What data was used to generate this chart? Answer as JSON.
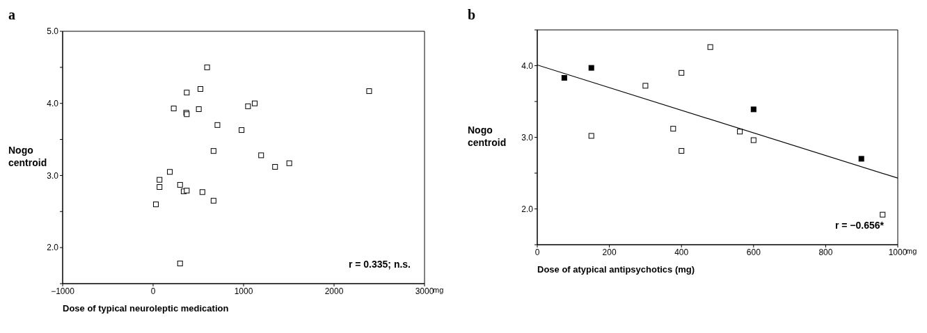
{
  "chart_data": [
    {
      "type": "scatter",
      "title": "a",
      "xlabel": "Dose of typical neuroleptic medication",
      "ylabel": "Nogo centroid",
      "annotations": [
        "r = 0.335; n.s.",
        "mg"
      ],
      "marker": "square",
      "grid": false,
      "legend": false,
      "xlim": [
        -1000,
        3000
      ],
      "xticks": [
        {
          "value": -1000,
          "label": "−1000"
        },
        0,
        1000,
        2000,
        3000
      ],
      "ylim": [
        1.5,
        5.0
      ],
      "yticks": [
        {
          "value": 1.5,
          "label": null
        },
        {
          "value": 2,
          "label": "2.0"
        },
        {
          "value": 2.5,
          "label": null
        },
        {
          "value": 3,
          "label": "3.0"
        },
        {
          "value": 3.5,
          "label": null
        },
        {
          "value": 4,
          "label": "4.0"
        },
        {
          "value": 4.5,
          "label": null
        },
        {
          "value": 5,
          "label": "5.0"
        }
      ],
      "series": [
        {
          "color": "#ffffff",
          "x": [
            597,
            523,
            372,
            2388,
            228,
            366,
            372,
            505,
            1049,
            1123,
            711,
            978,
            668,
            1194,
            1348,
            1505,
            185,
            71,
            71,
            298,
            338,
            372,
            545,
            668,
            31,
            298
          ],
          "values": [
            4.5,
            4.2,
            4.15,
            4.17,
            3.93,
            3.87,
            3.85,
            3.92,
            3.96,
            4.0,
            3.7,
            3.63,
            3.34,
            3.28,
            3.12,
            3.17,
            3.05,
            2.94,
            2.84,
            2.87,
            2.78,
            2.79,
            2.77,
            2.65,
            2.6,
            1.78
          ]
        }
      ]
    },
    {
      "type": "scatter",
      "title": "b",
      "xlabel": "Dose of atypical antipsychotics (mg)",
      "ylabel": "Nogo centroid",
      "annotations": [
        "r =  −0.656*",
        "mg"
      ],
      "marker": "square",
      "grid": false,
      "legend": false,
      "xlim": [
        0,
        1000
      ],
      "xticks": [
        0,
        200,
        400,
        600,
        800,
        1000
      ],
      "ylim": [
        1.5,
        4.5
      ],
      "yticks": [
        {
          "value": 1.5,
          "label": null
        },
        {
          "value": 2,
          "label": "2.0"
        },
        {
          "value": 2.5,
          "label": null
        },
        {
          "value": 3,
          "label": "3.0"
        },
        {
          "value": 3.5,
          "label": null
        },
        {
          "value": 4,
          "label": "4.0"
        },
        {
          "value": 4.5,
          "label": null
        }
      ],
      "series": [
        {
          "color": "#000000",
          "x": [
            75,
            150,
            600,
            899
          ],
          "values": [
            3.83,
            3.97,
            3.39,
            2.7
          ]
        },
        {
          "color": "#ffffff",
          "x": [
            150,
            300,
            400,
            377,
            400,
            480,
            562,
            600,
            958
          ],
          "values": [
            3.02,
            3.72,
            3.9,
            3.12,
            2.81,
            4.26,
            3.08,
            2.96,
            1.92
          ]
        },
        {
          "type": "line",
          "marker": "none",
          "color": "#000000",
          "x": [
            0,
            1000
          ],
          "values": [
            4.01,
            2.43
          ]
        }
      ]
    }
  ]
}
